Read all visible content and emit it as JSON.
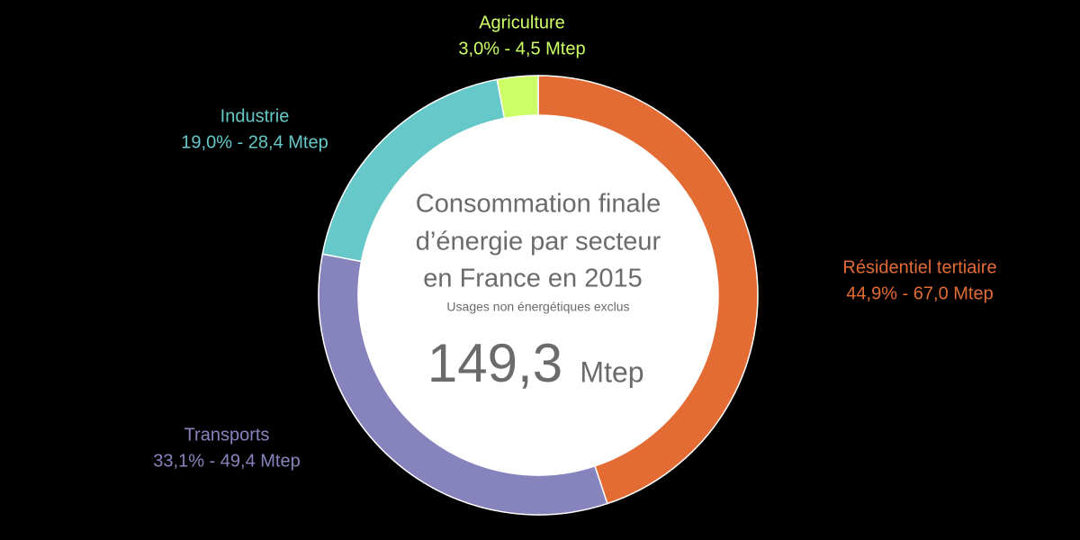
{
  "chart_data": {
    "type": "pie",
    "title": [
      "Consommation finale",
      "d’énergie par secteur",
      "en France en 2015"
    ],
    "subtitle": "Usages non énergétiques exclus",
    "total_label": "149,3",
    "total_unit": "Mtep",
    "categories": [
      "Résidentiel tertiaire",
      "Transports",
      "Industrie",
      "Agriculture"
    ],
    "values": [
      44.9,
      33.1,
      19.0,
      3.0
    ],
    "value_labels": [
      "44,9% - 67,0 Mtep",
      "33,1% - 49,4 Mtep",
      "19,0% - 28,4 Mtep",
      "3,0% - 4,5 Mtep"
    ],
    "colors": [
      "#e36c35",
      "#8783bd",
      "#66c8c8",
      "#ccff66"
    ]
  }
}
